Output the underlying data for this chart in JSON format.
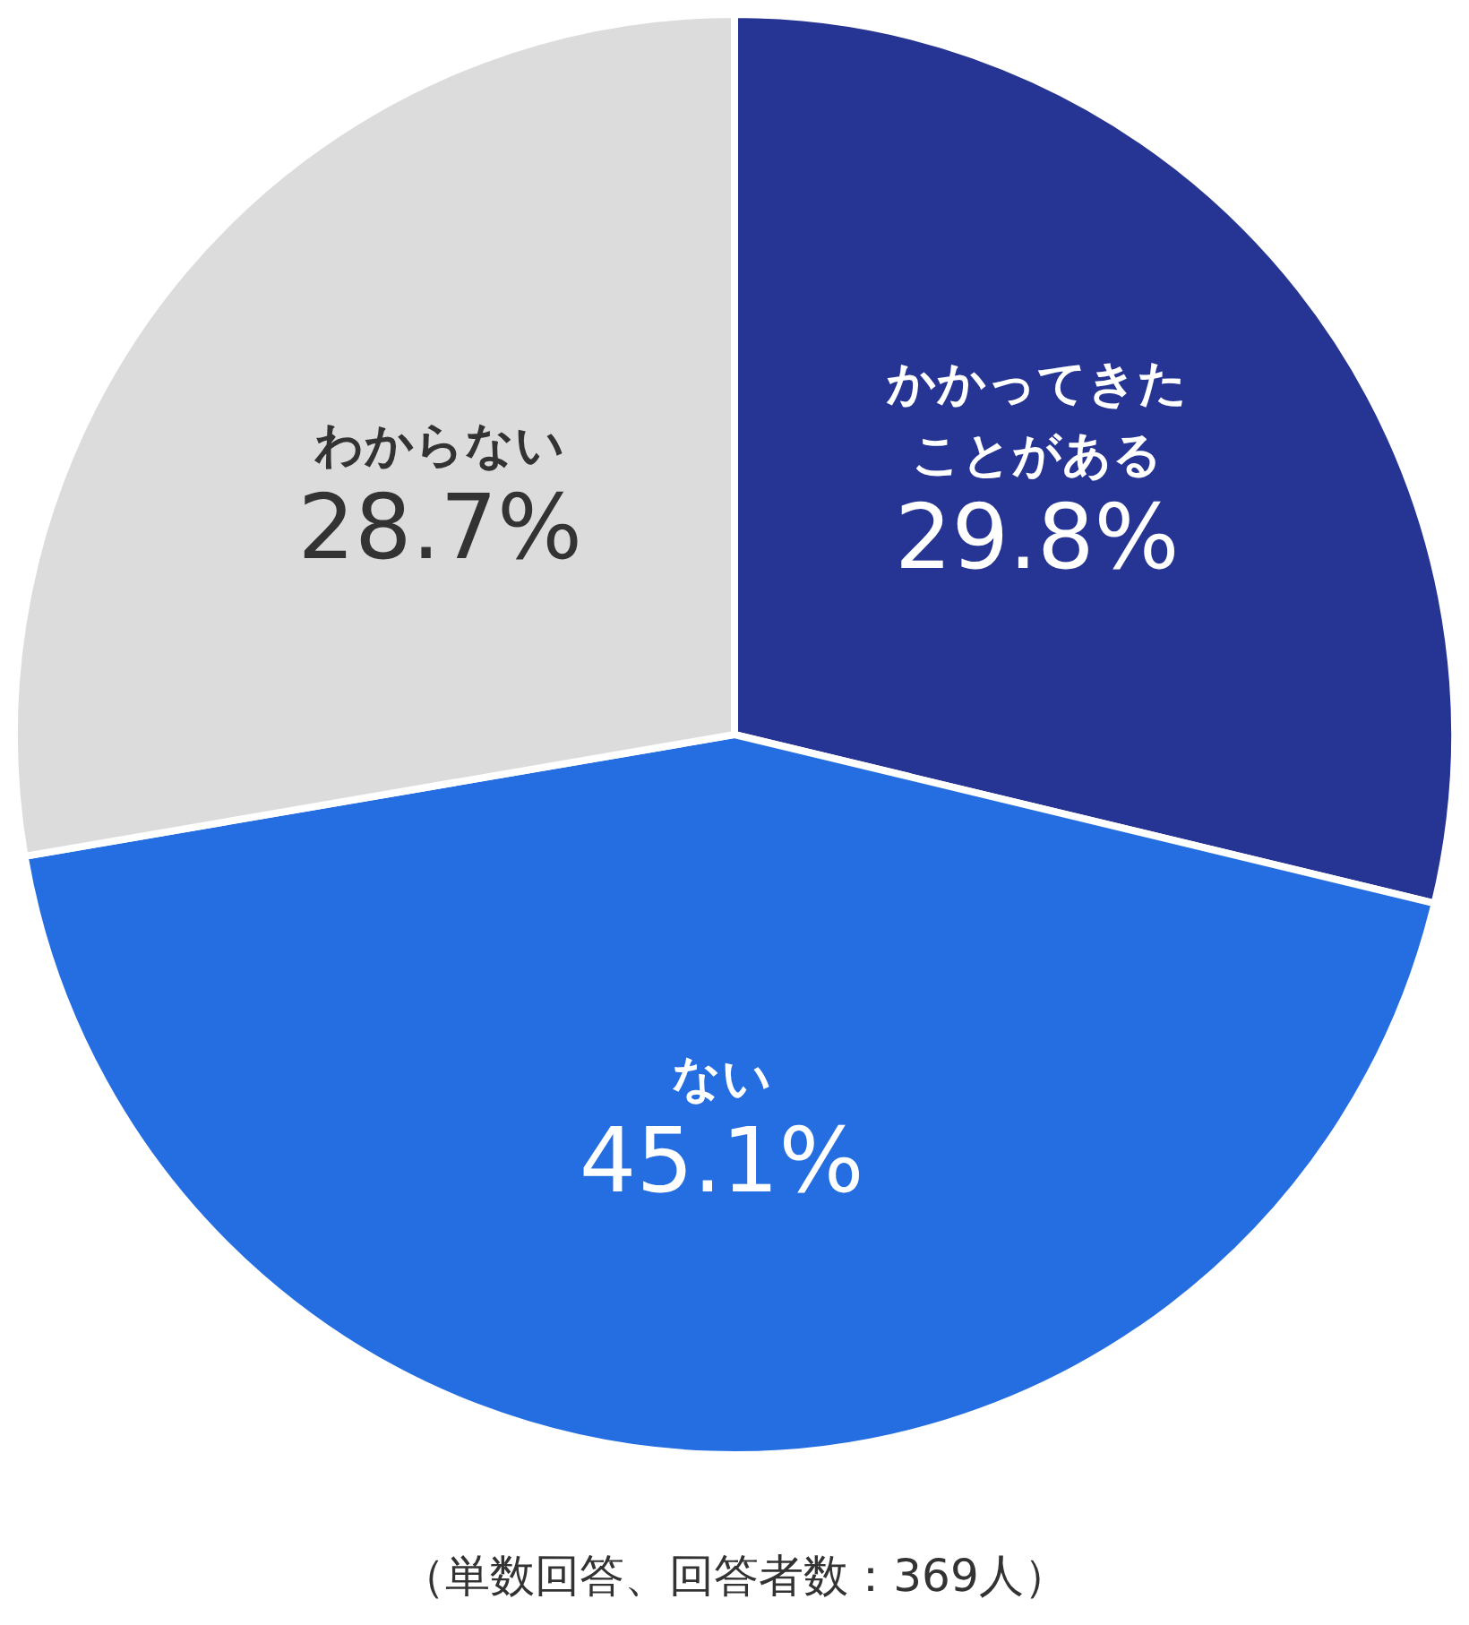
{
  "chart_data": {
    "type": "pie",
    "categories": [
      "かかってきたことがある",
      "ない",
      "わからない"
    ],
    "values": [
      29.8,
      45.1,
      28.7
    ],
    "colors": [
      "#263593",
      "#256ee2",
      "#dcdcdc"
    ],
    "value_labels": [
      "29.8%",
      "45.1%",
      "28.7%"
    ],
    "annotations": [
      "（単数回答、回答者数：369人）"
    ]
  }
}
